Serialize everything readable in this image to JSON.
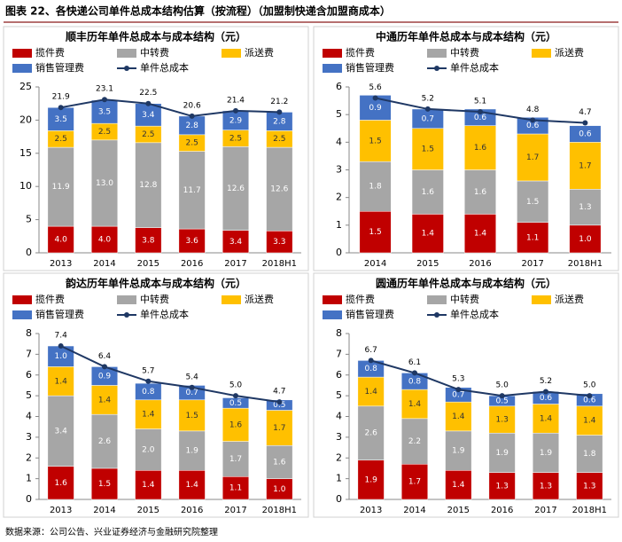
{
  "title": "图表 22、各快递公司单件总成本结构估算（按流程）（加盟制快递含加盟商成本）",
  "source": "数据来源：公司公告、兴业证券经济与金融研究院整理",
  "chart_data": [
    {
      "type": "bar",
      "stacked": true,
      "title": "顺丰历年单件总成本与成本结构（元）",
      "categories": [
        "2013",
        "2014",
        "2015",
        "2016",
        "2017",
        "2018H1"
      ],
      "ylim": [
        0,
        25
      ],
      "yticks": [
        0,
        5,
        10,
        15,
        20,
        25
      ],
      "series": [
        {
          "name": "揽件费",
          "color": "#c00000",
          "values": [
            4.0,
            4.0,
            3.8,
            3.6,
            3.4,
            3.3
          ],
          "value_labels": [
            "4.0",
            "4.0",
            "3.8",
            "3.6",
            "3.4",
            "3.3"
          ]
        },
        {
          "name": "中转费",
          "color": "#a6a6a6",
          "values": [
            11.9,
            13.0,
            12.8,
            11.7,
            12.6,
            12.6
          ],
          "value_labels": [
            "11.9",
            "13.0",
            "12.8",
            "11.7",
            "12.6",
            "12.6"
          ]
        },
        {
          "name": "派送费",
          "color": "#ffc000",
          "values": [
            2.5,
            2.5,
            2.5,
            2.5,
            2.5,
            2.5
          ],
          "value_labels": [
            "2.5",
            "2.5",
            "2.5",
            "2.5",
            "2.5",
            "2.5"
          ]
        },
        {
          "name": "销售管理费",
          "color": "#4472c4",
          "values": [
            3.5,
            3.5,
            3.4,
            2.8,
            2.9,
            2.8
          ],
          "value_labels": [
            "3.5",
            "3.5",
            "3.4",
            "2.8",
            "2.9",
            "2.8"
          ]
        },
        {
          "name": "单件总成本",
          "type": "line",
          "color": "#1f3864",
          "values": [
            21.9,
            23.1,
            22.5,
            20.6,
            21.4,
            21.2
          ],
          "value_labels": [
            "21.9",
            "23.1",
            "22.5",
            "20.6",
            "21.4",
            "21.2"
          ]
        }
      ]
    },
    {
      "type": "bar",
      "stacked": true,
      "title": "中通历年单件总成本与成本结构（元）",
      "categories": [
        "2014",
        "2015",
        "2016",
        "2017",
        "2018H1"
      ],
      "ylim": [
        0,
        6
      ],
      "yticks": [
        0,
        1,
        2,
        3,
        4,
        5,
        6
      ],
      "series": [
        {
          "name": "揽件费",
          "color": "#c00000",
          "values": [
            1.5,
            1.4,
            1.4,
            1.1,
            1.0
          ],
          "value_labels": [
            "1.5",
            "1.4",
            "1.4",
            "1.1",
            "1.0"
          ]
        },
        {
          "name": "中转费",
          "color": "#a6a6a6",
          "values": [
            1.8,
            1.6,
            1.6,
            1.5,
            1.3
          ],
          "value_labels": [
            "1.8",
            "1.6",
            "1.6",
            "1.5",
            "1.3"
          ]
        },
        {
          "name": "派送费",
          "color": "#ffc000",
          "values": [
            1.5,
            1.5,
            1.6,
            1.7,
            1.7
          ],
          "value_labels": [
            "1.5",
            "1.5",
            "1.6",
            "1.7",
            "1.7"
          ]
        },
        {
          "name": "销售管理费",
          "color": "#4472c4",
          "values": [
            0.9,
            0.7,
            0.6,
            0.6,
            0.6
          ],
          "value_labels": [
            "0.9",
            "0.7",
            "0.6",
            "0.6",
            "0.6"
          ]
        },
        {
          "name": "单件总成本",
          "type": "line",
          "color": "#1f3864",
          "values": [
            5.6,
            5.2,
            5.1,
            4.8,
            4.7
          ],
          "value_labels": [
            "5.6",
            "5.2",
            "5.1",
            "4.8",
            "4.7"
          ]
        }
      ]
    },
    {
      "type": "bar",
      "stacked": true,
      "title": "韵达历年单件总成本与成本结构（元）",
      "categories": [
        "2013",
        "2014",
        "2015",
        "2016",
        "2017",
        "2018H1"
      ],
      "ylim": [
        0,
        8
      ],
      "yticks": [
        0,
        1,
        2,
        3,
        4,
        5,
        6,
        7,
        8
      ],
      "series": [
        {
          "name": "揽件费",
          "color": "#c00000",
          "values": [
            1.6,
            1.5,
            1.4,
            1.4,
            1.1,
            1.0
          ],
          "value_labels": [
            "1.6",
            "1.5",
            "1.4",
            "1.4",
            "1.1",
            "1.0"
          ]
        },
        {
          "name": "中转费",
          "color": "#a6a6a6",
          "values": [
            3.4,
            2.6,
            2.0,
            1.9,
            1.7,
            1.6
          ],
          "value_labels": [
            "3.4",
            "2.6",
            "2.0",
            "1.9",
            "1.7",
            "1.6"
          ]
        },
        {
          "name": "派送费",
          "color": "#ffc000",
          "values": [
            1.4,
            1.4,
            1.4,
            1.5,
            1.6,
            1.7
          ],
          "value_labels": [
            "1.4",
            "1.4",
            "1.4",
            "1.5",
            "1.6",
            "1.7"
          ]
        },
        {
          "name": "销售管理费",
          "color": "#4472c4",
          "values": [
            1.0,
            0.9,
            0.8,
            0.7,
            0.5,
            0.5
          ],
          "value_labels": [
            "1.0",
            "0.9",
            "0.8",
            "0.7",
            "0.5",
            "0.5"
          ]
        },
        {
          "name": "单件总成本",
          "type": "line",
          "color": "#1f3864",
          "values": [
            7.4,
            6.4,
            5.7,
            5.4,
            5.0,
            4.7
          ],
          "value_labels": [
            "7.4",
            "6.4",
            "5.7",
            "5.4",
            "5.0",
            "4.7"
          ]
        }
      ]
    },
    {
      "type": "bar",
      "stacked": true,
      "title": "圆通历年单件总成本与成本结构（元）",
      "categories": [
        "2013",
        "2014",
        "2015",
        "2016",
        "2017",
        "2018H1"
      ],
      "ylim": [
        0,
        8
      ],
      "yticks": [
        0,
        1,
        2,
        3,
        4,
        5,
        6,
        7,
        8
      ],
      "series": [
        {
          "name": "揽件费",
          "color": "#c00000",
          "values": [
            1.9,
            1.7,
            1.4,
            1.3,
            1.3,
            1.3
          ],
          "value_labels": [
            "1.9",
            "1.7",
            "1.4",
            "1.3",
            "1.3",
            "1.3"
          ]
        },
        {
          "name": "中转费",
          "color": "#a6a6a6",
          "values": [
            2.6,
            2.2,
            1.9,
            1.9,
            1.9,
            1.8
          ],
          "value_labels": [
            "2.6",
            "2.2",
            "1.9",
            "1.9",
            "1.9",
            "1.8"
          ]
        },
        {
          "name": "派送费",
          "color": "#ffc000",
          "values": [
            1.4,
            1.4,
            1.4,
            1.3,
            1.4,
            1.4
          ],
          "value_labels": [
            "1.4",
            "1.4",
            "1.4",
            "1.3",
            "1.4",
            "1.4"
          ]
        },
        {
          "name": "销售管理费",
          "color": "#4472c4",
          "values": [
            0.8,
            0.8,
            0.7,
            0.5,
            0.6,
            0.6
          ],
          "value_labels": [
            "0.8",
            "0.8",
            "0.7",
            "0.5",
            "0.6",
            "0.6"
          ]
        },
        {
          "name": "单件总成本",
          "type": "line",
          "color": "#1f3864",
          "values": [
            6.7,
            6.1,
            5.3,
            5.0,
            5.2,
            5.0
          ],
          "value_labels": [
            "6.7",
            "6.1",
            "5.3",
            "5.0",
            "5.2",
            "5.0"
          ]
        }
      ]
    }
  ]
}
